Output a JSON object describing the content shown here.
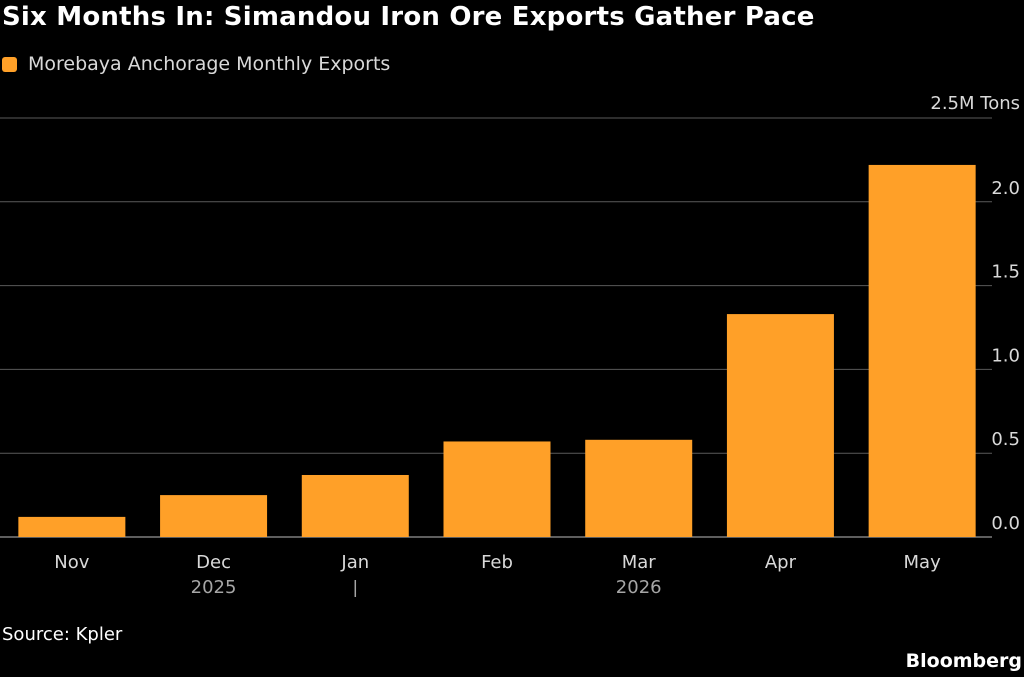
{
  "title": "Six Months In: Simandou Iron Ore Exports Gather Pace",
  "legend": {
    "label": "Morebaya Anchorage Monthly Exports"
  },
  "source": "Source: Kpler",
  "brand": "Bloomberg",
  "colors": {
    "bar": "#ffa028",
    "grid": "#5a5a5a",
    "background": "#000000"
  },
  "chart_data": {
    "type": "bar",
    "title": "Six Months In: Simandou Iron Ore Exports Gather Pace",
    "categories": [
      "Nov",
      "Dec",
      "Jan",
      "Feb",
      "Mar",
      "Apr",
      "May"
    ],
    "year_labels": [
      {
        "label": "2025",
        "under": "Dec"
      },
      {
        "label": "2026",
        "under": "Mar"
      }
    ],
    "year_separator_after": "Dec",
    "series": [
      {
        "name": "Morebaya Anchorage Monthly Exports",
        "values": [
          0.12,
          0.25,
          0.37,
          0.57,
          0.58,
          1.33,
          2.22
        ]
      }
    ],
    "unit_label": "2.5M Tons",
    "yticks": [
      0.0,
      0.5,
      1.0,
      1.5,
      2.0,
      2.5
    ],
    "ytick_labels": [
      "0.0",
      "0.5",
      "1.0",
      "1.5",
      "2.0",
      ""
    ],
    "ylim": [
      0,
      2.5
    ],
    "axis_side": "right",
    "grid": true,
    "legend_position": "top-left"
  }
}
